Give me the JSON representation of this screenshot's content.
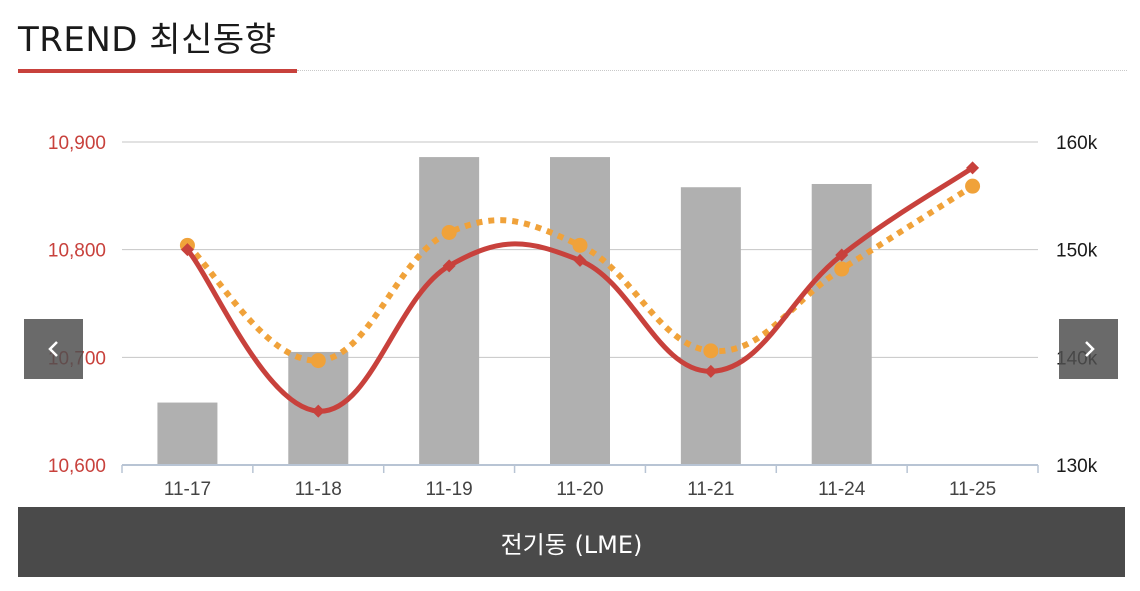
{
  "header": {
    "title": "TREND 최신동향"
  },
  "nav": {
    "prev_icon": "chevron-left-icon",
    "next_icon": "chevron-right-icon"
  },
  "caption": {
    "label": "전기동 (LME)"
  },
  "colors": {
    "accent": "#c8413c",
    "dotted_series": "#f0a23a",
    "bars": "#b0b0b0",
    "caption_bg": "#4a4a4a",
    "nav_bg": "#505050"
  },
  "chart_data": {
    "type": "bar",
    "categories": [
      "11-17",
      "11-18",
      "11-19",
      "11-20",
      "11-21",
      "11-24",
      "11-25"
    ],
    "y_left": {
      "ticks": [
        "10,600",
        "10,700",
        "10,800",
        "10,900"
      ],
      "range": [
        10600,
        10900
      ]
    },
    "y_right": {
      "ticks": [
        "130k",
        "140k",
        "150k",
        "160k"
      ],
      "range": [
        130,
        160
      ]
    },
    "series": [
      {
        "kind": "bar",
        "axis": "right",
        "values": [
          135.8,
          140.5,
          158.6,
          158.6,
          155.8,
          156.1,
          null
        ]
      },
      {
        "kind": "line-solid",
        "axis": "left",
        "marker": "diamond",
        "values": [
          10800,
          10650,
          10785,
          10790,
          10687,
          10795,
          10876
        ]
      },
      {
        "kind": "line-dotted",
        "axis": "left",
        "marker": "circle",
        "values": [
          10804,
          10697,
          10816,
          10804,
          10706,
          10782,
          10859
        ]
      }
    ],
    "grid": true
  }
}
